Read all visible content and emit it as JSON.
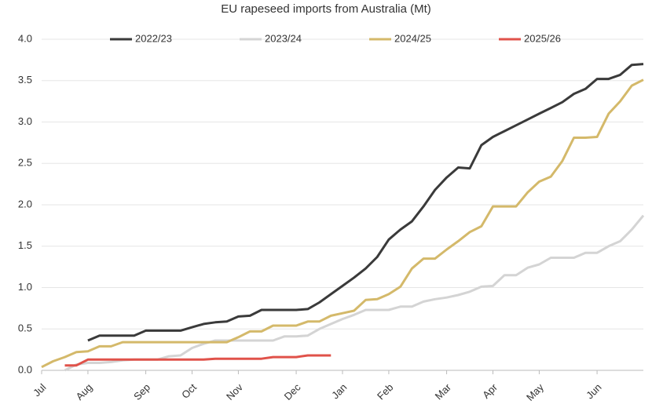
{
  "chart_data": {
    "type": "line",
    "title": "EU rapeseed imports from Australia (Mt)",
    "categories": [
      "Jul",
      null,
      null,
      null,
      "Aug",
      null,
      null,
      null,
      null,
      "Sep",
      null,
      null,
      null,
      "Oct",
      null,
      null,
      null,
      "Nov",
      null,
      null,
      null,
      null,
      "Dec",
      null,
      null,
      null,
      "Jan",
      null,
      null,
      null,
      "Feb",
      null,
      null,
      null,
      null,
      "Mar",
      null,
      null,
      null,
      "Apr",
      null,
      null,
      null,
      "May",
      null,
      null,
      null,
      null,
      "Jun",
      null,
      null,
      null,
      null
    ],
    "series": [
      {
        "name": "2022/23",
        "color": "#3a3a3a",
        "values": [
          null,
          null,
          null,
          null,
          0.36,
          0.42,
          0.42,
          0.42,
          0.42,
          0.48,
          0.48,
          0.48,
          0.48,
          0.52,
          0.56,
          0.58,
          0.59,
          0.65,
          0.66,
          0.73,
          0.73,
          0.73,
          0.73,
          0.74,
          0.82,
          0.92,
          1.02,
          1.12,
          1.23,
          1.37,
          1.58,
          1.7,
          1.8,
          1.98,
          2.18,
          2.33,
          2.45,
          2.44,
          2.72,
          2.82,
          2.89,
          2.96,
          3.03,
          3.1,
          3.17,
          3.24,
          3.34,
          3.4,
          3.52,
          3.52,
          3.57,
          3.69,
          3.7
        ]
      },
      {
        "name": "2023/24",
        "color": "#d4d4d4",
        "values": [
          null,
          null,
          0.0,
          0.07,
          0.09,
          0.09,
          0.1,
          0.12,
          0.13,
          0.13,
          0.13,
          0.17,
          0.18,
          0.27,
          0.32,
          0.36,
          0.36,
          0.36,
          0.36,
          0.36,
          0.36,
          0.41,
          0.41,
          0.42,
          0.5,
          0.56,
          0.62,
          0.67,
          0.73,
          0.73,
          0.73,
          0.77,
          0.77,
          0.83,
          0.86,
          0.88,
          0.91,
          0.95,
          1.01,
          1.02,
          1.15,
          1.15,
          1.24,
          1.28,
          1.36,
          1.36,
          1.36,
          1.42,
          1.42,
          1.5,
          1.56,
          1.7,
          1.87
        ]
      },
      {
        "name": "2024/25",
        "color": "#d4b96a",
        "values": [
          0.04,
          0.11,
          0.16,
          0.22,
          0.23,
          0.29,
          0.29,
          0.34,
          0.34,
          0.34,
          0.34,
          0.34,
          0.34,
          0.34,
          0.34,
          0.34,
          0.34,
          0.4,
          0.47,
          0.47,
          0.54,
          0.54,
          0.54,
          0.59,
          0.59,
          0.66,
          0.69,
          0.72,
          0.85,
          0.86,
          0.92,
          1.01,
          1.23,
          1.35,
          1.35,
          1.46,
          1.56,
          1.67,
          1.74,
          1.98,
          1.98,
          1.98,
          2.15,
          2.28,
          2.34,
          2.53,
          2.81,
          2.81,
          2.82,
          3.1,
          3.25,
          3.44,
          3.51
        ]
      },
      {
        "name": "2025/26",
        "color": "#e0524a",
        "values": [
          null,
          null,
          0.06,
          0.06,
          0.13,
          0.13,
          0.13,
          0.13,
          0.13,
          0.13,
          0.13,
          0.13,
          0.13,
          0.13,
          0.13,
          0.14,
          0.14,
          0.14,
          0.14,
          0.14,
          0.16,
          0.16,
          0.16,
          0.18,
          0.18,
          0.18,
          null,
          null,
          null,
          null,
          null,
          null,
          null,
          null,
          null,
          null,
          null,
          null,
          null,
          null,
          null,
          null,
          null,
          null,
          null,
          null,
          null,
          null,
          null,
          null,
          null,
          null,
          null
        ]
      }
    ],
    "ylim": [
      0,
      4
    ],
    "yticks": [
      {
        "value": 0,
        "label": "0.0"
      },
      {
        "value": 0.5,
        "label": "0.5"
      },
      {
        "value": 1,
        "label": "1.0"
      },
      {
        "value": 1.5,
        "label": "1.5"
      },
      {
        "value": 2,
        "label": "2.0"
      },
      {
        "value": 2.5,
        "label": "2.5"
      },
      {
        "value": 3,
        "label": "3.0"
      },
      {
        "value": 3.5,
        "label": "3.5"
      },
      {
        "value": 4,
        "label": "4.0"
      }
    ],
    "grid": true,
    "legend": "top"
  }
}
